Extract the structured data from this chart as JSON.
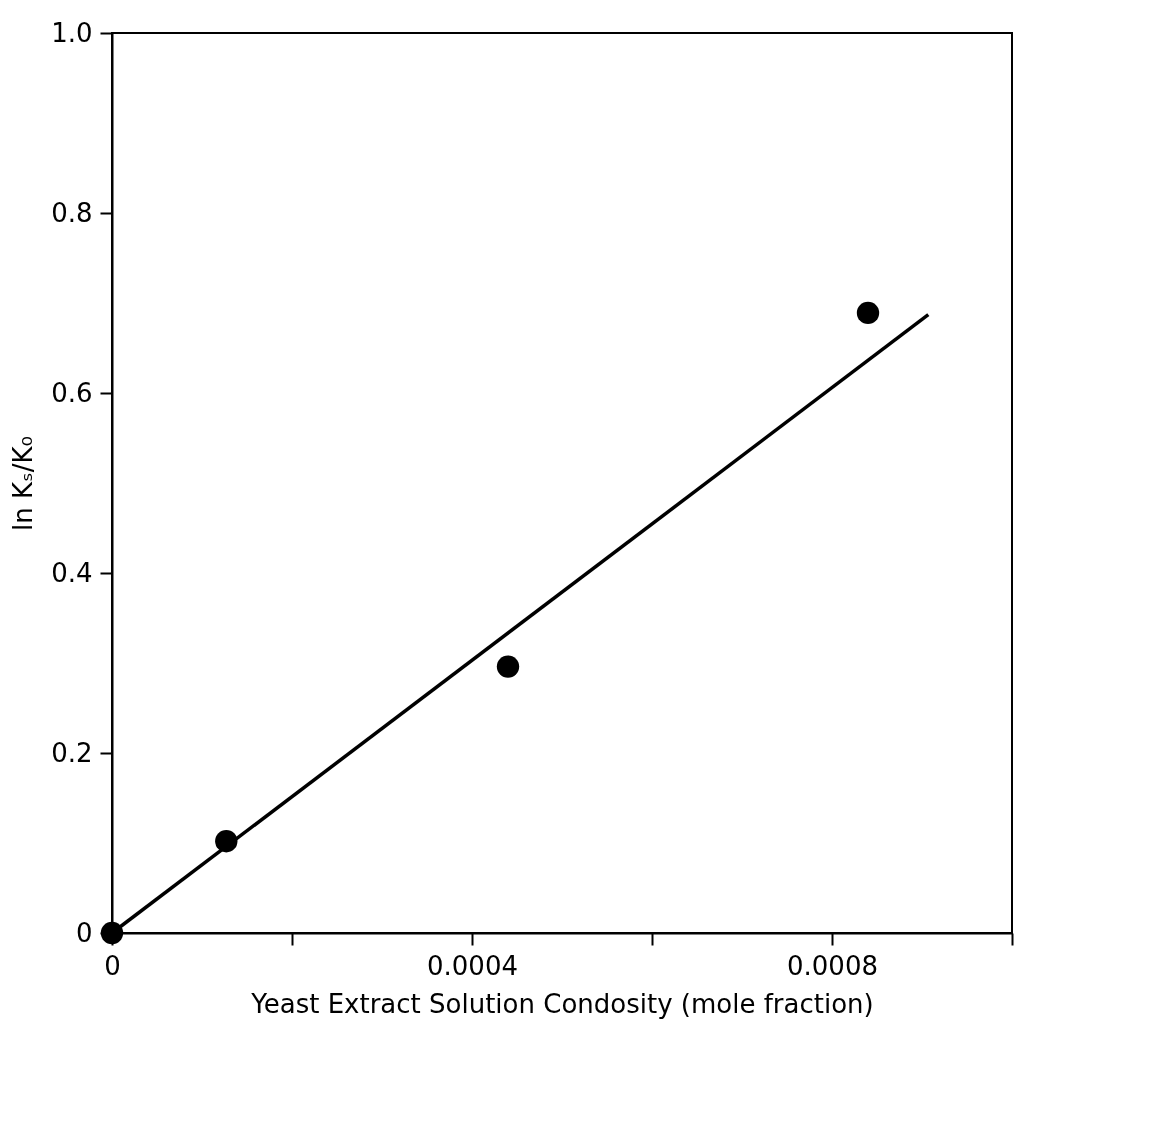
{
  "chart_data": {
    "type": "scatter",
    "xlabel": "Yeast Extract Solution Condosity (mole fraction)",
    "ylabel": "ln Kₛ/K₀",
    "xlim": [
      0,
      0.001
    ],
    "ylim": [
      0,
      1
    ],
    "xticks": [
      0,
      {
        "value": 0.0002,
        "label": null
      },
      0.0004,
      {
        "value": 0.0006,
        "label": null
      },
      0.0008,
      {
        "value": 0.001,
        "label": null
      }
    ],
    "yticks": [
      0,
      0.2,
      0.4,
      0.6,
      0.8,
      {
        "value": 1,
        "label": "1.0"
      }
    ],
    "grid": false,
    "legend": false,
    "series": [
      {
        "marker": "circle",
        "color": "#000000",
        "x": [
          0,
          0.000127,
          0.00044,
          0.00084
        ],
        "values": [
          0,
          0.102,
          0.296,
          0.689
        ]
      },
      {
        "type": "line",
        "color": "#000000",
        "line_style": "solid",
        "marker": "none",
        "x": [
          0,
          0.000907
        ],
        "values": [
          0,
          0.687
        ]
      }
    ]
  }
}
